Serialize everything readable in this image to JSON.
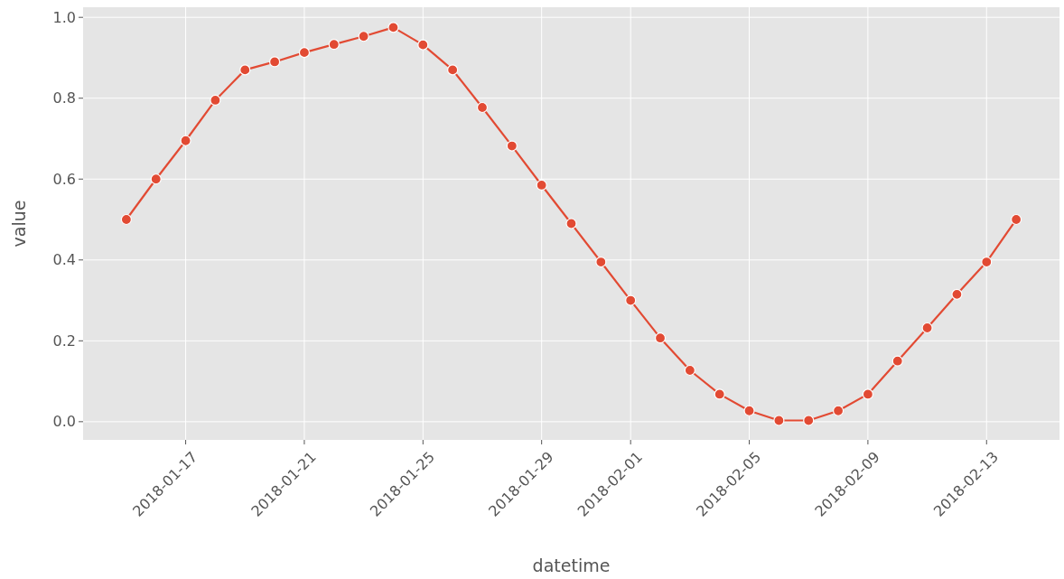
{
  "chart_data": {
    "type": "line",
    "xlabel": "datetime",
    "ylabel": "value",
    "x": [
      "2018-01-15",
      "2018-01-16",
      "2018-01-17",
      "2018-01-18",
      "2018-01-19",
      "2018-01-20",
      "2018-01-21",
      "2018-01-22",
      "2018-01-23",
      "2018-01-24",
      "2018-01-25",
      "2018-01-26",
      "2018-01-27",
      "2018-01-28",
      "2018-01-29",
      "2018-01-30",
      "2018-01-31",
      "2018-02-01",
      "2018-02-02",
      "2018-02-03",
      "2018-02-04",
      "2018-02-05",
      "2018-02-06",
      "2018-02-07",
      "2018-02-08",
      "2018-02-09",
      "2018-02-10",
      "2018-02-11",
      "2018-02-12",
      "2018-02-13",
      "2018-02-14"
    ],
    "series": [
      {
        "color": "#e24a33",
        "values": [
          0.5,
          0.6,
          0.695,
          0.795,
          0.87,
          0.89,
          0.913,
          0.933,
          0.953,
          0.975,
          0.932,
          0.87,
          0.777,
          0.682,
          0.585,
          0.49,
          0.395,
          0.3,
          0.207,
          0.127,
          0.068,
          0.027,
          0.003,
          0.003,
          0.027,
          0.068,
          0.15,
          0.232,
          0.315,
          0.395,
          0.5
        ]
      }
    ],
    "xlim": [
      "2018-01-13T13:00",
      "2018-02-15T11:00"
    ],
    "xticks": [
      "2018-01-17",
      "2018-01-21",
      "2018-01-25",
      "2018-01-29",
      "2018-02-01",
      "2018-02-05",
      "2018-02-09",
      "2018-02-13"
    ],
    "ylim": [
      -0.045,
      1.025
    ],
    "yticks": [
      {
        "value": 0,
        "label": "0.0"
      },
      0.2,
      0.4,
      0.6,
      0.8,
      {
        "value": 1,
        "label": "1.0"
      }
    ],
    "grid": true,
    "marker": "circle",
    "line_style": "solid"
  }
}
